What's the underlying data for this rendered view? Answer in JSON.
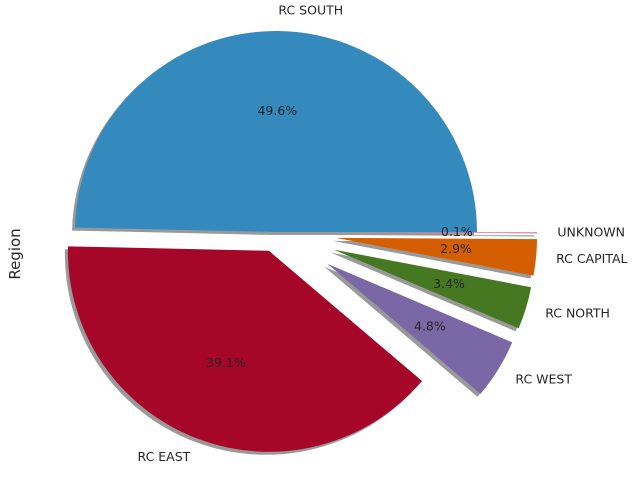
{
  "chart_data": {
    "type": "pie",
    "ylabel": "Region",
    "slices": [
      {
        "label": "RC SOUTH",
        "value": 49.6,
        "pct_label": "49.6%",
        "color": "#348abd"
      },
      {
        "label": "RC EAST",
        "value": 39.1,
        "pct_label": "39.1%",
        "color": "#a60628"
      },
      {
        "label": "RC WEST",
        "value": 4.8,
        "pct_label": "4.8%",
        "color": "#7a68a6"
      },
      {
        "label": "RC NORTH",
        "value": 3.4,
        "pct_label": "3.4%",
        "color": "#467821"
      },
      {
        "label": "RC CAPITAL",
        "value": 2.9,
        "pct_label": "2.9%",
        "color": "#d55e00"
      },
      {
        "label": "UNKNOWN",
        "value": 0.1,
        "pct_label": "0.1%",
        "color": "#cc79a7"
      }
    ],
    "start_angle_deg": 0,
    "explode": [
      0,
      0.1,
      0.3,
      0.3,
      0.3,
      0.3
    ],
    "shadow": true
  }
}
